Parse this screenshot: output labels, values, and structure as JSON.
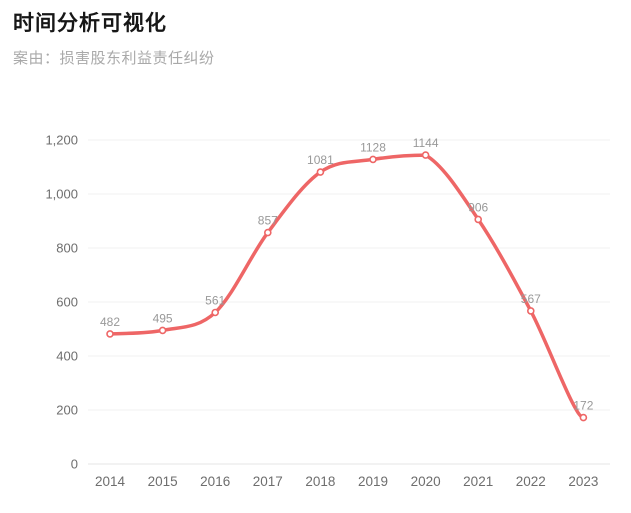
{
  "header": {
    "title": "时间分析可视化",
    "subtitle": "案由：损害股东利益责任纠纷"
  },
  "chart_data": {
    "type": "line",
    "title": "时间分析可视化",
    "subtitle": "案由：损害股东利益责任纠纷",
    "categories": [
      "2014",
      "2015",
      "2016",
      "2017",
      "2018",
      "2019",
      "2020",
      "2021",
      "2022",
      "2023"
    ],
    "values": [
      482,
      495,
      561,
      857,
      1081,
      1128,
      1144,
      906,
      567,
      172
    ],
    "point_labels": [
      "482",
      "495",
      "561",
      "857",
      "1081",
      "1128",
      "1144",
      "906",
      "567",
      "172"
    ],
    "xlabel": "",
    "ylabel": "",
    "ylim": [
      0,
      1200
    ],
    "y_ticks": [
      0,
      200,
      400,
      600,
      800,
      1000,
      1200
    ],
    "y_tick_labels": [
      "0",
      "200",
      "400",
      "600",
      "800",
      "1,000",
      "1,200"
    ],
    "grid": true,
    "legend_position": "none",
    "smooth": true,
    "point_style": "hollow-circle",
    "colors": {
      "line": "#ee6666",
      "point_fill": "#ffffff",
      "point_stroke": "#ee6666",
      "data_label": "#999999",
      "axis_label": "#6e6e6e",
      "gridline": "#f0f0f0",
      "zero_line": "#e6e6e6",
      "title": "#171717",
      "subtitle": "#a9a9a9"
    }
  }
}
